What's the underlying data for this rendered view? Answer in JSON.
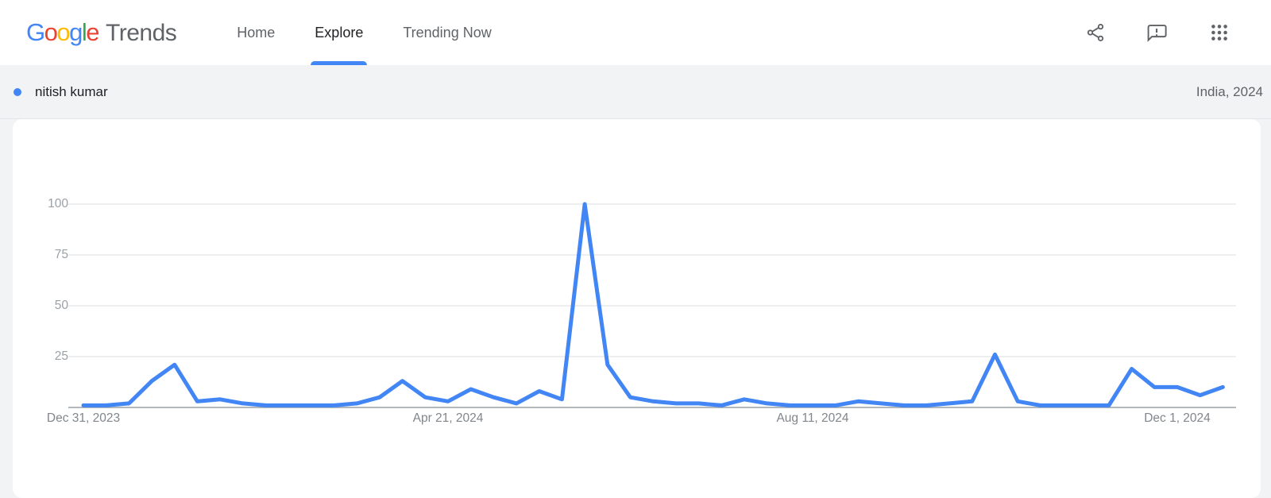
{
  "header": {
    "logo": {
      "letters": [
        {
          "ch": "G",
          "color": "#4285F4"
        },
        {
          "ch": "o",
          "color": "#EA4335"
        },
        {
          "ch": "o",
          "color": "#FBBC05"
        },
        {
          "ch": "g",
          "color": "#4285F4"
        },
        {
          "ch": "l",
          "color": "#34A853"
        },
        {
          "ch": "e",
          "color": "#EA4335"
        }
      ],
      "product": "Trends"
    },
    "nav": [
      {
        "id": "home",
        "label": "Home",
        "active": false
      },
      {
        "id": "explore",
        "label": "Explore",
        "active": true
      },
      {
        "id": "trending-now",
        "label": "Trending Now",
        "active": false
      }
    ],
    "icons": [
      "share-icon",
      "feedback-icon",
      "apps-grid-icon"
    ]
  },
  "query_bar": {
    "term": "nitish kumar",
    "dot_color": "#4285f4",
    "region_label": "India, 2024"
  },
  "colors": {
    "accent_blue": "#4285f4",
    "active_tab_underline": "#4285f4",
    "page_background": "#f1f3f4",
    "card_background": "#ffffff"
  },
  "chart_data": {
    "type": "line",
    "title": "",
    "xlabel": "",
    "ylabel": "",
    "grid": true,
    "legend_position": "none",
    "ylim": [
      0,
      100
    ],
    "y_axis": {
      "ticks": [
        100,
        75,
        50,
        25
      ]
    },
    "x_axis": {
      "anchors": [
        {
          "index": 0,
          "label": "Dec 31, 2023"
        },
        {
          "index": 16,
          "label": "Apr 21, 2024"
        },
        {
          "index": 32,
          "label": "Aug 11, 2024"
        },
        {
          "index": 48,
          "label": "Dec 1, 2024"
        }
      ]
    },
    "x": [
      "Dec 31, 2023",
      "Jan 7, 2024",
      "Jan 14, 2024",
      "Jan 21, 2024",
      "Jan 28, 2024",
      "Feb 4, 2024",
      "Feb 11, 2024",
      "Feb 18, 2024",
      "Feb 25, 2024",
      "Mar 3, 2024",
      "Mar 10, 2024",
      "Mar 17, 2024",
      "Mar 24, 2024",
      "Mar 31, 2024",
      "Apr 7, 2024",
      "Apr 14, 2024",
      "Apr 21, 2024",
      "Apr 28, 2024",
      "May 5, 2024",
      "May 12, 2024",
      "May 19, 2024",
      "May 26, 2024",
      "Jun 2, 2024",
      "Jun 9, 2024",
      "Jun 16, 2024",
      "Jun 23, 2024",
      "Jun 30, 2024",
      "Jul 7, 2024",
      "Jul 14, 2024",
      "Jul 21, 2024",
      "Jul 28, 2024",
      "Aug 4, 2024",
      "Aug 11, 2024",
      "Aug 18, 2024",
      "Aug 25, 2024",
      "Sep 1, 2024",
      "Sep 8, 2024",
      "Sep 15, 2024",
      "Sep 22, 2024",
      "Sep 29, 2024",
      "Oct 6, 2024",
      "Oct 13, 2024",
      "Oct 20, 2024",
      "Oct 27, 2024",
      "Nov 3, 2024",
      "Nov 10, 2024",
      "Nov 17, 2024",
      "Nov 24, 2024",
      "Dec 1, 2024",
      "Dec 8, 2024",
      "Dec 15, 2024"
    ],
    "series": [
      {
        "name": "nitish kumar",
        "color": "#4285f4",
        "values": [
          1,
          1,
          2,
          13,
          21,
          3,
          4,
          2,
          1,
          1,
          1,
          1,
          2,
          5,
          13,
          5,
          3,
          9,
          5,
          2,
          8,
          4,
          100,
          21,
          5,
          3,
          2,
          2,
          1,
          4,
          2,
          1,
          1,
          1,
          3,
          2,
          1,
          1,
          2,
          3,
          26,
          3,
          1,
          1,
          1,
          1,
          19,
          10,
          10,
          6,
          10
        ]
      }
    ]
  }
}
